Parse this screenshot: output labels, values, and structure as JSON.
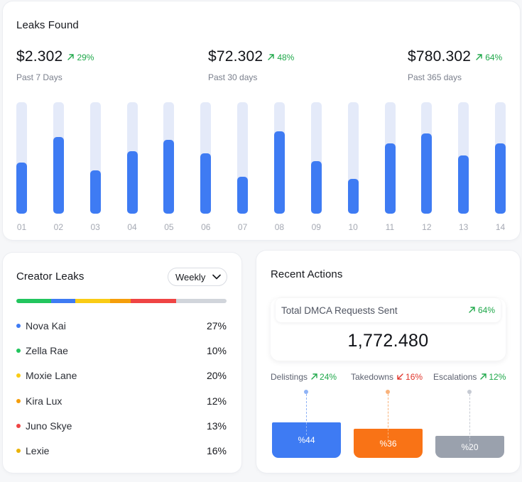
{
  "leaks_found": {
    "title": "Leaks Found",
    "stats": [
      {
        "value": "$2.302",
        "change": "29%",
        "label": "Past 7 Days"
      },
      {
        "value": "$72.302",
        "change": "48%",
        "label": "Past 30 days"
      },
      {
        "value": "$780.302",
        "change": "64%",
        "label": "Past 365 days"
      }
    ],
    "chart_data": {
      "type": "bar",
      "categories": [
        "01",
        "02",
        "03",
        "04",
        "05",
        "06",
        "07",
        "08",
        "09",
        "10",
        "11",
        "12",
        "13",
        "14"
      ],
      "values": [
        46,
        69,
        39,
        56,
        66,
        54,
        33,
        74,
        47,
        31,
        63,
        72,
        52,
        63
      ],
      "ylim": [
        0,
        100
      ],
      "title": "",
      "xlabel": "",
      "ylabel": ""
    },
    "colors": {
      "fill": "#3e7bf3",
      "track": "#e4eaf9",
      "positive": "#1fa84a"
    }
  },
  "creator_leaks": {
    "title": "Creator Leaks",
    "period": "Weekly",
    "creators": [
      {
        "name": "Nova Kai",
        "pct": "27%",
        "color": "#3e7bf3"
      },
      {
        "name": "Zella Rae",
        "pct": "10%",
        "color": "#22c55e"
      },
      {
        "name": "Moxie Lane",
        "pct": "20%",
        "color": "#facc15"
      },
      {
        "name": "Kira Lux",
        "pct": "12%",
        "color": "#f59e0b"
      },
      {
        "name": "Juno Skye",
        "pct": "13%",
        "color": "#ef4444"
      },
      {
        "name": "Lexie",
        "pct": "16%",
        "color": "#eab308"
      }
    ],
    "distribution": [
      {
        "share": 16.5,
        "color": "#22c55e"
      },
      {
        "share": 11.5,
        "color": "#3e7bf3"
      },
      {
        "share": 16.5,
        "color": "#facc15"
      },
      {
        "share": 10,
        "color": "#f59e0b"
      },
      {
        "share": 21.5,
        "color": "#ef4444"
      },
      {
        "share": 24,
        "color": "#d1d5db"
      }
    ]
  },
  "recent_actions": {
    "title": "Recent Actions",
    "dmca": {
      "label": "Total DMCA Requests Sent",
      "change": "64%",
      "value": "1,772.480"
    },
    "actions": [
      {
        "label": "Delistings",
        "change": "24%",
        "direction": "up",
        "value_label": "%44",
        "level": 0.94,
        "color": "#3e7bf3",
        "dot": "#8fb3f6"
      },
      {
        "label": "Takedowns",
        "change": "16%",
        "direction": "down",
        "value_label": "%36",
        "level": 0.77,
        "color": "#f97316",
        "dot": "#f9b27a"
      },
      {
        "label": "Escalations",
        "change": "12%",
        "direction": "up",
        "value_label": "%20",
        "level": 0.58,
        "color": "#9aa1ad",
        "dot": "#c6cad3"
      }
    ]
  }
}
